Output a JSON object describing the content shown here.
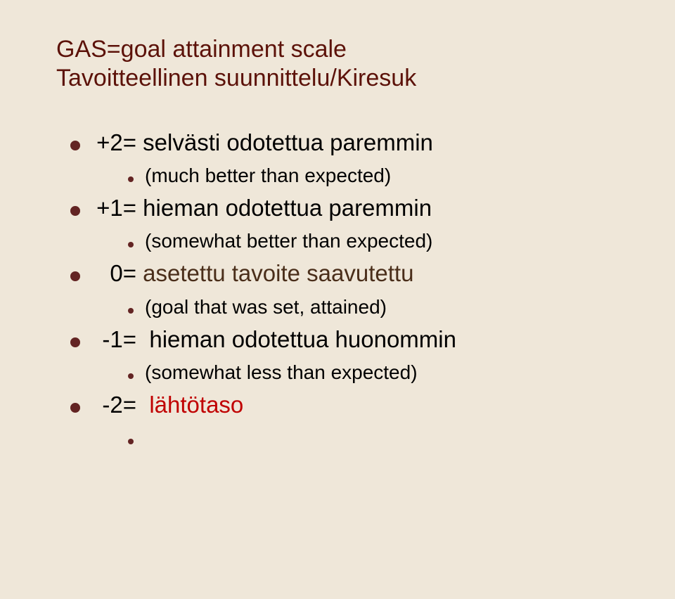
{
  "title_line1": "GAS=goal attainment scale",
  "title_line2": "Tavoitteellinen suunnittelu/Kiresuk",
  "colors": {
    "background": "#efe7d9",
    "title": "#5c1209",
    "body": "#000000",
    "red": "#c00000",
    "brown": "#4a2e1a",
    "darkred": "#632423",
    "bullet": "#632423"
  },
  "items": [
    {
      "score": "+2=",
      "text": "selvästi odotettua paremmin",
      "cls": ""
    },
    {
      "sub": true,
      "text": "(much better than expected)"
    },
    {
      "score": "+1=",
      "text": "hieman odotettua paremmin",
      "cls": ""
    },
    {
      "sub": true,
      "text": "(somewhat better than expected)"
    },
    {
      "score": "0=",
      "text": "asetettu tavoite saavutettu",
      "cls": "brown"
    },
    {
      "sub": true,
      "text": "(goal that was set, attained)"
    },
    {
      "score": "-1=",
      "text": "hieman odotettua huonommin",
      "cls": ""
    },
    {
      "sub": true,
      "text": "(somewhat less than expected)"
    },
    {
      "score": "-2=",
      "text": "lähtötaso",
      "cls": "red"
    }
  ]
}
